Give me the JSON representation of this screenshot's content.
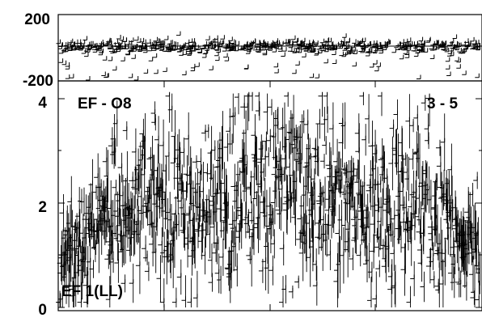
{
  "chart_data": [
    {
      "type": "scatter",
      "panel": "phase",
      "title": "",
      "xlabel": "",
      "ylabel": "",
      "ylim": [
        -200,
        200
      ],
      "y_ticks": [
        200,
        -200
      ],
      "y_tick_labels": [
        "200",
        "-200"
      ],
      "reference_line_y": 0,
      "series": [
        {
          "name": "",
          "y_center": 0,
          "y_spread": 40,
          "outlier_fraction": 0.08,
          "outlier_range": [
            -200,
            -40
          ]
        }
      ]
    },
    {
      "type": "scatter",
      "panel": "amplitude",
      "title": "",
      "xlabel": "",
      "ylabel": "",
      "ylim": [
        0,
        4
      ],
      "y_ticks": [
        4,
        2,
        0
      ],
      "y_tick_labels": [
        "4",
        "2",
        "0"
      ],
      "annotations": {
        "top_left": "EF - O8",
        "top_right": "3 - 5",
        "bottom_left": "EF 1(LL)"
      },
      "series": [
        {
          "name": "",
          "envelope_x": [
            0.0,
            0.05,
            0.1,
            0.15,
            0.2,
            0.3,
            0.4,
            0.5,
            0.6,
            0.7,
            0.8,
            0.85,
            0.9,
            0.95,
            1.0
          ],
          "envelope_mean": [
            0.8,
            1.2,
            1.7,
            1.9,
            2.0,
            2.0,
            2.1,
            2.2,
            2.1,
            2.0,
            2.0,
            2.0,
            1.8,
            1.4,
            0.9
          ],
          "envelope_spread": [
            0.5,
            0.7,
            0.9,
            1.0,
            1.1,
            1.1,
            1.2,
            1.2,
            1.2,
            1.1,
            1.1,
            1.1,
            1.0,
            0.8,
            0.6
          ]
        }
      ]
    }
  ]
}
